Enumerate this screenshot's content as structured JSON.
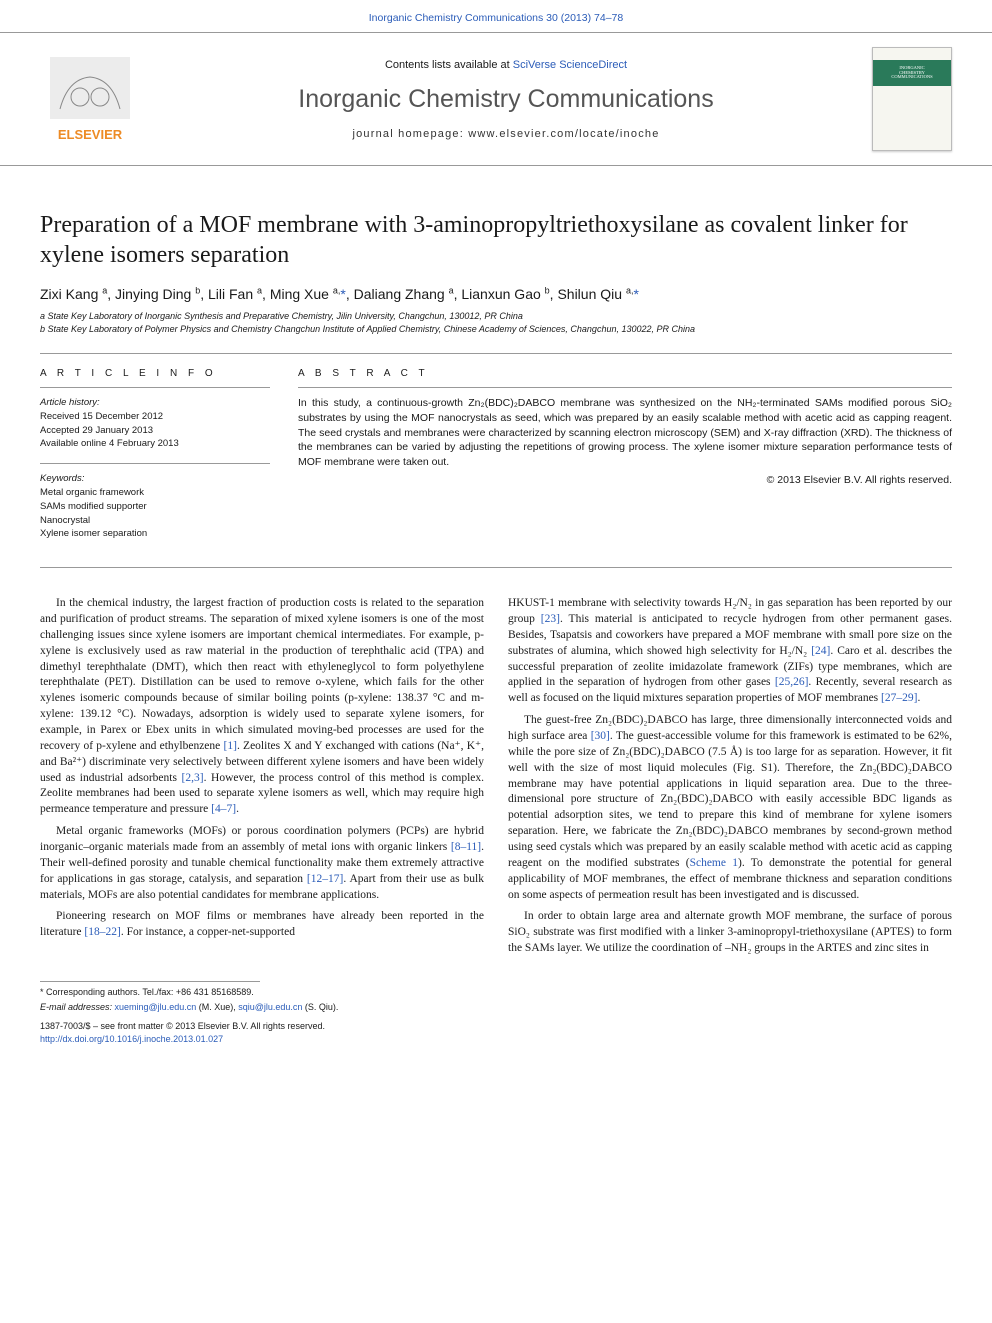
{
  "header": {
    "top_link_prefix": "Inorganic Chemistry Communications 30 (2013) 74–78",
    "contents_prefix": "Contents lists available at ",
    "contents_link": "SciVerse ScienceDirect",
    "journal_title": "Inorganic Chemistry Communications",
    "homepage_prefix": "journal homepage: ",
    "homepage_url": "www.elsevier.com/locate/inoche",
    "cover_title_1": "INORGANIC",
    "cover_title_2": "CHEMISTRY",
    "cover_title_3": "COMMUNICATIONS"
  },
  "article": {
    "title": "Preparation of a MOF membrane with 3-aminopropyltriethoxysilane as covalent linker for xylene isomers separation",
    "authors_html": "Zixi Kang <sup>a</sup>, Jinying Ding <sup>b</sup>, Lili Fan <sup>a</sup>, Ming Xue <sup>a,</sup><span class='star'>*</span>, Daliang Zhang <sup>a</sup>, Lianxun Gao <sup>b</sup>, Shilun Qiu <sup>a,</sup><span class='star'>*</span>",
    "affil_a": "a  State Key Laboratory of Inorganic Synthesis and Preparative Chemistry, Jilin University, Changchun, 130012, PR China",
    "affil_b": "b  State Key Laboratory of Polymer Physics and Chemistry Changchun Institute of Applied Chemistry, Chinese Academy of Sciences, Changchun, 130022, PR China"
  },
  "meta": {
    "ai_hdr": "A R T I C L E   I N F O",
    "history_hdr": "Article history:",
    "received": "Received 15 December 2012",
    "accepted": "Accepted 29 January 2013",
    "online": "Available online 4 February 2013",
    "keywords_hdr": "Keywords:",
    "kw1": "Metal organic framework",
    "kw2": "SAMs modified supporter",
    "kw3": "Nanocrystal",
    "kw4": "Xylene isomer separation"
  },
  "abstract": {
    "hdr": "A B S T R A C T",
    "text": "In this study, a continuous-growth Zn₂(BDC)₂DABCO membrane was synthesized on the NH₂-terminated SAMs modified porous SiO₂ substrates by using the MOF nanocrystals as seed, which was prepared by an easily scalable method with acetic acid as capping reagent. The seed crystals and membranes were characterized by scanning electron microscopy (SEM) and X-ray diffraction (XRD). The thickness of the membranes can be varied by adjusting the repetitions of growing process. The xylene isomer mixture separation performance tests of MOF membrane were taken out.",
    "copyright": "© 2013 Elsevier B.V. All rights reserved."
  },
  "body": {
    "left": [
      "In the chemical industry, the largest fraction of production costs is related to the separation and purification of product streams. The separation of mixed xylene isomers is one of the most challenging issues since xylene isomers are important chemical intermediates. For example, p-xylene is exclusively used as raw material in the production of terephthalic acid (TPA) and dimethyl terephthalate (DMT), which then react with ethyleneglycol to form polyethylene terephthalate (PET). Distillation can be used to remove o-xylene, which fails for the other xylenes isomeric compounds because of similar boiling points (p-xylene: 138.37 °C and m-xylene: 139.12 °C). Nowadays, adsorption is widely used to separate xylene isomers, for example, in Parex or Ebex units in which simulated moving-bed processes are used for the recovery of p-xylene and ethylbenzene <span class='ref'>[1]</span>. Zeolites X and Y exchanged with cations (Na⁺, K⁺, and Ba²⁺) discriminate very selectively between different xylene isomers and have been widely used as industrial adsorbents <span class='ref'>[2,3]</span>. However, the process control of this method is complex. Zeolite membranes had been used to separate xylene isomers as well, which may require high permeance temperature and pressure <span class='ref'>[4–7]</span>.",
      "Metal organic frameworks (MOFs) or porous coordination polymers (PCPs) are hybrid inorganic–organic materials made from an assembly of metal ions with organic linkers <span class='ref'>[8–11]</span>. Their well-defined porosity and tunable chemical functionality make them extremely attractive for applications in gas storage, catalysis, and separation <span class='ref'>[12–17]</span>. Apart from their use as bulk materials, MOFs are also potential candidates for membrane applications.",
      "Pioneering research on MOF films or membranes have already been reported in the literature <span class='ref'>[18–22]</span>. For instance, a copper-net-supported"
    ],
    "right": [
      "HKUST-1 membrane with selectivity towards H₂/N₂ in gas separation has been reported by our group <span class='ref'>[23]</span>. This material is anticipated to recycle hydrogen from other permanent gases. Besides, Tsapatsis and coworkers have prepared a MOF membrane with small pore size on the substrates of alumina, which showed high selectivity for H₂/N₂ <span class='ref'>[24]</span>. Caro et al. describes the successful preparation of zeolite imidazolate framework (ZIFs) type membranes, which are applied in the separation of hydrogen from other gases <span class='ref'>[25,26]</span>. Recently, several research as well as focused on the liquid mixtures separation properties of MOF membranes <span class='ref'>[27–29]</span>.",
      "The guest-free Zn₂(BDC)₂DABCO has large, three dimensionally interconnected voids and high surface area <span class='ref'>[30]</span>. The guest-accessible volume for this framework is estimated to be 62%, while the pore size of Zn₂(BDC)₂DABCO (7.5 Å) is too large for as separation. However, it fit well with the size of most liquid molecules (Fig. S1). Therefore, the Zn₂(BDC)₂DABCO membrane may have potential applications in liquid separation area. Due to the three-dimensional pore structure of Zn₂(BDC)₂DABCO with easily accessible BDC ligands as potential adsorption sites, we tend to prepare this kind of membrane for xylene isomers separation. Here, we fabricate the Zn₂(BDC)₂DABCO membranes by second-grown method using seed cystals which was prepared by an easily scalable method with acetic acid as capping reagent on the modified substrates (<span class='ref'>Scheme 1</span>). To demonstrate the potential for general applicability of MOF membranes, the effect of membrane thickness and separation conditions on some aspects of permeation result has been investigated and is discussed.",
      "In order to obtain large area and alternate growth MOF membrane, the surface of porous SiO₂ substrate was first modified with a linker 3-aminopropyl-triethoxysilane (APTES) to form the SAMs layer. We utilize the coordination of –NH₂ groups in the ARTES and zinc sites in"
    ]
  },
  "footer": {
    "corr_label": "* Corresponding authors. Tel./fax: +86 431 85168589.",
    "email_prefix": "E-mail addresses: ",
    "email1": "xueming@jlu.edu.cn",
    "email1_who": " (M. Xue), ",
    "email2": "sqiu@jlu.edu.cn",
    "email2_who": " (S. Qiu).",
    "issn": "1387-7003/$ – see front matter © 2013 Elsevier B.V. All rights reserved.",
    "doi": "http://dx.doi.org/10.1016/j.inoche.2013.01.027"
  },
  "colors": {
    "link": "#2b5cb8",
    "rule": "#999999",
    "logo_orange": "#ed8b25",
    "logo_grey": "#d9d9d9",
    "cover_green": "#2a7a5a"
  }
}
